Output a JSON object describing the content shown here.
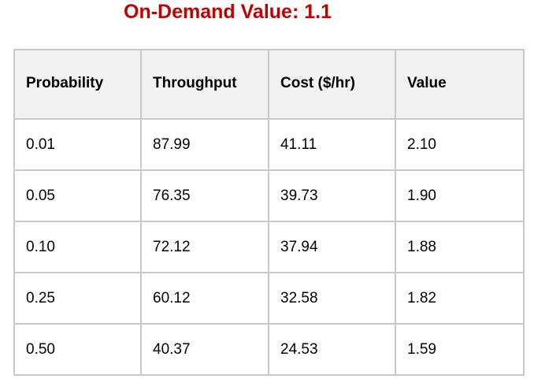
{
  "title": "On-Demand Value: 1.1",
  "table": {
    "headers": [
      "Probability",
      "Throughput",
      "Cost ($/hr)",
      "Value"
    ],
    "rows": [
      [
        "0.01",
        "87.99",
        "41.11",
        "2.10"
      ],
      [
        "0.05",
        "76.35",
        "39.73",
        "1.90"
      ],
      [
        "0.10",
        "72.12",
        "37.94",
        "1.88"
      ],
      [
        "0.25",
        "60.12",
        "32.58",
        "1.82"
      ],
      [
        "0.50",
        "40.37",
        "24.53",
        "1.59"
      ]
    ]
  },
  "colors": {
    "title": "#c00000",
    "header_background": "#f2f2f2",
    "border": "#c9c9c9"
  }
}
